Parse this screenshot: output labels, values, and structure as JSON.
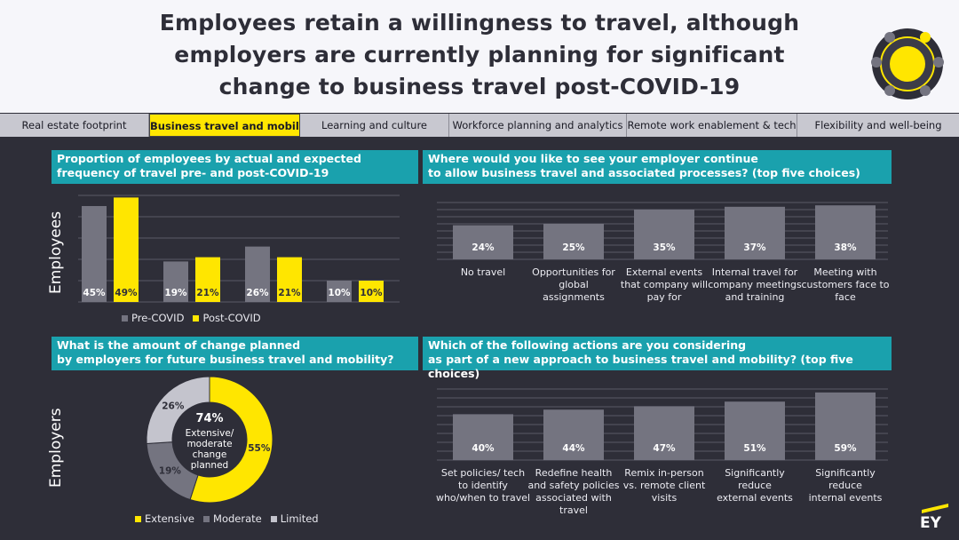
{
  "header": {
    "title_lines": [
      "Employees retain a willingness to travel, although",
      "employers are currently planning for significant",
      "change to business travel post-COVID-19"
    ]
  },
  "tabs": [
    {
      "label": "Real estate footprint",
      "active": false
    },
    {
      "label": "Business travel and mobility",
      "active": true
    },
    {
      "label": "Learning and culture",
      "active": false
    },
    {
      "label": "Workforce planning and analytics",
      "active": false
    },
    {
      "label": "Remote work enablement & tech",
      "active": false
    },
    {
      "label": "Flexibility and well-being",
      "active": false
    }
  ],
  "colors": {
    "accent_yellow": "#ffe600",
    "teal": "#1aa1ad",
    "grey_bar": "#747480",
    "light_grey": "#c4c4cd",
    "background": "#2e2e38"
  },
  "panels": {
    "p1": {
      "title_lines": [
        "Proportion of employees by actual and expected",
        "frequency of travel pre- and post-COVID-19"
      ],
      "side_label": "Employees"
    },
    "p2": {
      "title_lines": [
        "Where would you like to see your employer continue",
        "to allow business travel and associated processes? (top five choices)"
      ]
    },
    "p3": {
      "title_lines": [
        "What is the amount of change planned",
        "by employers for future business travel and mobility?"
      ],
      "side_label": "Employers"
    },
    "p4": {
      "title_lines": [
        "Which of the following actions are you considering",
        "as part of a new approach to business travel and mobility? (top five choices)"
      ]
    }
  },
  "chart_data": [
    {
      "type": "bar",
      "title": "Proportion of employees by actual and expected frequency of travel pre- and post-COVID-19",
      "ylabel": "Employees",
      "ylim": [
        0,
        50
      ],
      "categories": [
        "",
        "",
        "",
        ""
      ],
      "series": [
        {
          "name": "Pre-COVID",
          "values": [
            45,
            19,
            26,
            10
          ],
          "labels": [
            "45%",
            "19%",
            "26%",
            "10%"
          ],
          "color": "#747480"
        },
        {
          "name": "Post-COVID",
          "values": [
            49,
            21,
            21,
            10
          ],
          "labels": [
            "49%",
            "21%",
            "21%",
            "10%"
          ],
          "color": "#ffe600"
        }
      ],
      "legend": "bottom",
      "grid": true
    },
    {
      "type": "bar",
      "title": "Where would you like to see your employer continue to allow business travel and associated processes? (top five choices)",
      "ylim": [
        0,
        40
      ],
      "categories": [
        "No travel",
        "Opportunities for global assignments",
        "External events that company will pay for",
        "Internal travel for company meetings and training",
        "Meeting with customers face to face"
      ],
      "category_lines": [
        [
          "No travel"
        ],
        [
          "Opportunities for",
          "global",
          "assignments"
        ],
        [
          "External events",
          "that company will",
          "pay for"
        ],
        [
          "Internal travel for",
          "company meetings",
          "and training"
        ],
        [
          "Meeting with",
          "customers face to",
          "face"
        ]
      ],
      "values": [
        24,
        25,
        35,
        37,
        38
      ],
      "labels": [
        "24%",
        "25%",
        "35%",
        "37%",
        "38%"
      ],
      "grid": true
    },
    {
      "type": "pie",
      "title": "What is the amount of change planned by employers for future business travel and mobility?",
      "labels": [
        "Extensive",
        "Moderate",
        "Limited"
      ],
      "values": [
        55,
        19,
        26
      ],
      "value_labels": [
        "55%",
        "19%",
        "26%"
      ],
      "colors": [
        "#ffe600",
        "#747480",
        "#c4c4cd"
      ],
      "center_value": "74%",
      "center_text": [
        "Extensive/",
        "moderate",
        "change",
        "planned"
      ],
      "legend": "bottom"
    },
    {
      "type": "bar",
      "title": "Which of the following actions are you considering as part of a new approach to business travel and mobility? (top five choices)",
      "ylim": [
        0,
        62
      ],
      "categories": [
        "Set policies/ tech to identify who/when to travel",
        "Redefine health and safety policies associated with travel",
        "Remix in-person vs. remote client visits",
        "Significantly reduce external events",
        "Significantly reduce internal events"
      ],
      "category_lines": [
        [
          "Set policies/ tech",
          "to identify",
          "who/when to travel"
        ],
        [
          "Redefine health",
          "and safety policies",
          "associated with",
          "travel"
        ],
        [
          "Remix in-person",
          "vs. remote client",
          "visits"
        ],
        [
          "Significantly",
          "reduce",
          "external events"
        ],
        [
          "Significantly",
          "reduce",
          "internal events"
        ]
      ],
      "values": [
        40,
        44,
        47,
        51,
        59
      ],
      "labels": [
        "40%",
        "44%",
        "47%",
        "51%",
        "59%"
      ],
      "grid": true
    }
  ],
  "brand": {
    "logo_text": "EY"
  }
}
